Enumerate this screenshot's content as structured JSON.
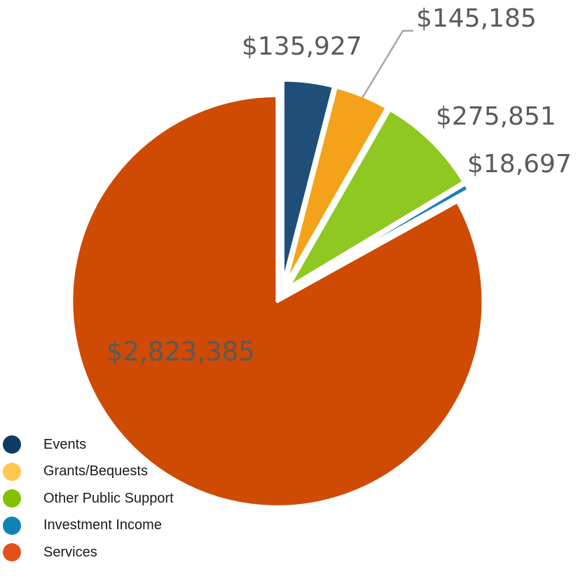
{
  "chart_data": {
    "type": "pie",
    "title": "",
    "start_angle_deg": 0,
    "direction": "clockwise",
    "slices": [
      {
        "label": "Events",
        "value": 135927,
        "display": "$135,927",
        "color": "#1f4e79"
      },
      {
        "label": "Grants/Bequests",
        "value": 145185,
        "display": "$145,185",
        "color": "#f5a21b"
      },
      {
        "label": "Other Public Support",
        "value": 275851,
        "display": "$275,851",
        "color": "#8ec820"
      },
      {
        "label": "Investment Income",
        "value": 18697,
        "display": "$18,697",
        "color": "#1b7fb8"
      },
      {
        "label": "Services",
        "value": 2823385,
        "display": "$2,823,385",
        "color": "#cf4a02"
      }
    ],
    "legend": {
      "position": "bottom-left",
      "items": [
        {
          "label": "Events",
          "color": "#0d3b66"
        },
        {
          "label": "Grants/Bequests",
          "color": "#fcc84f"
        },
        {
          "label": "Other Public Support",
          "color": "#82c000"
        },
        {
          "label": "Investment Income",
          "color": "#0e82b7"
        },
        {
          "label": "Services",
          "color": "#e5501b"
        }
      ]
    }
  }
}
